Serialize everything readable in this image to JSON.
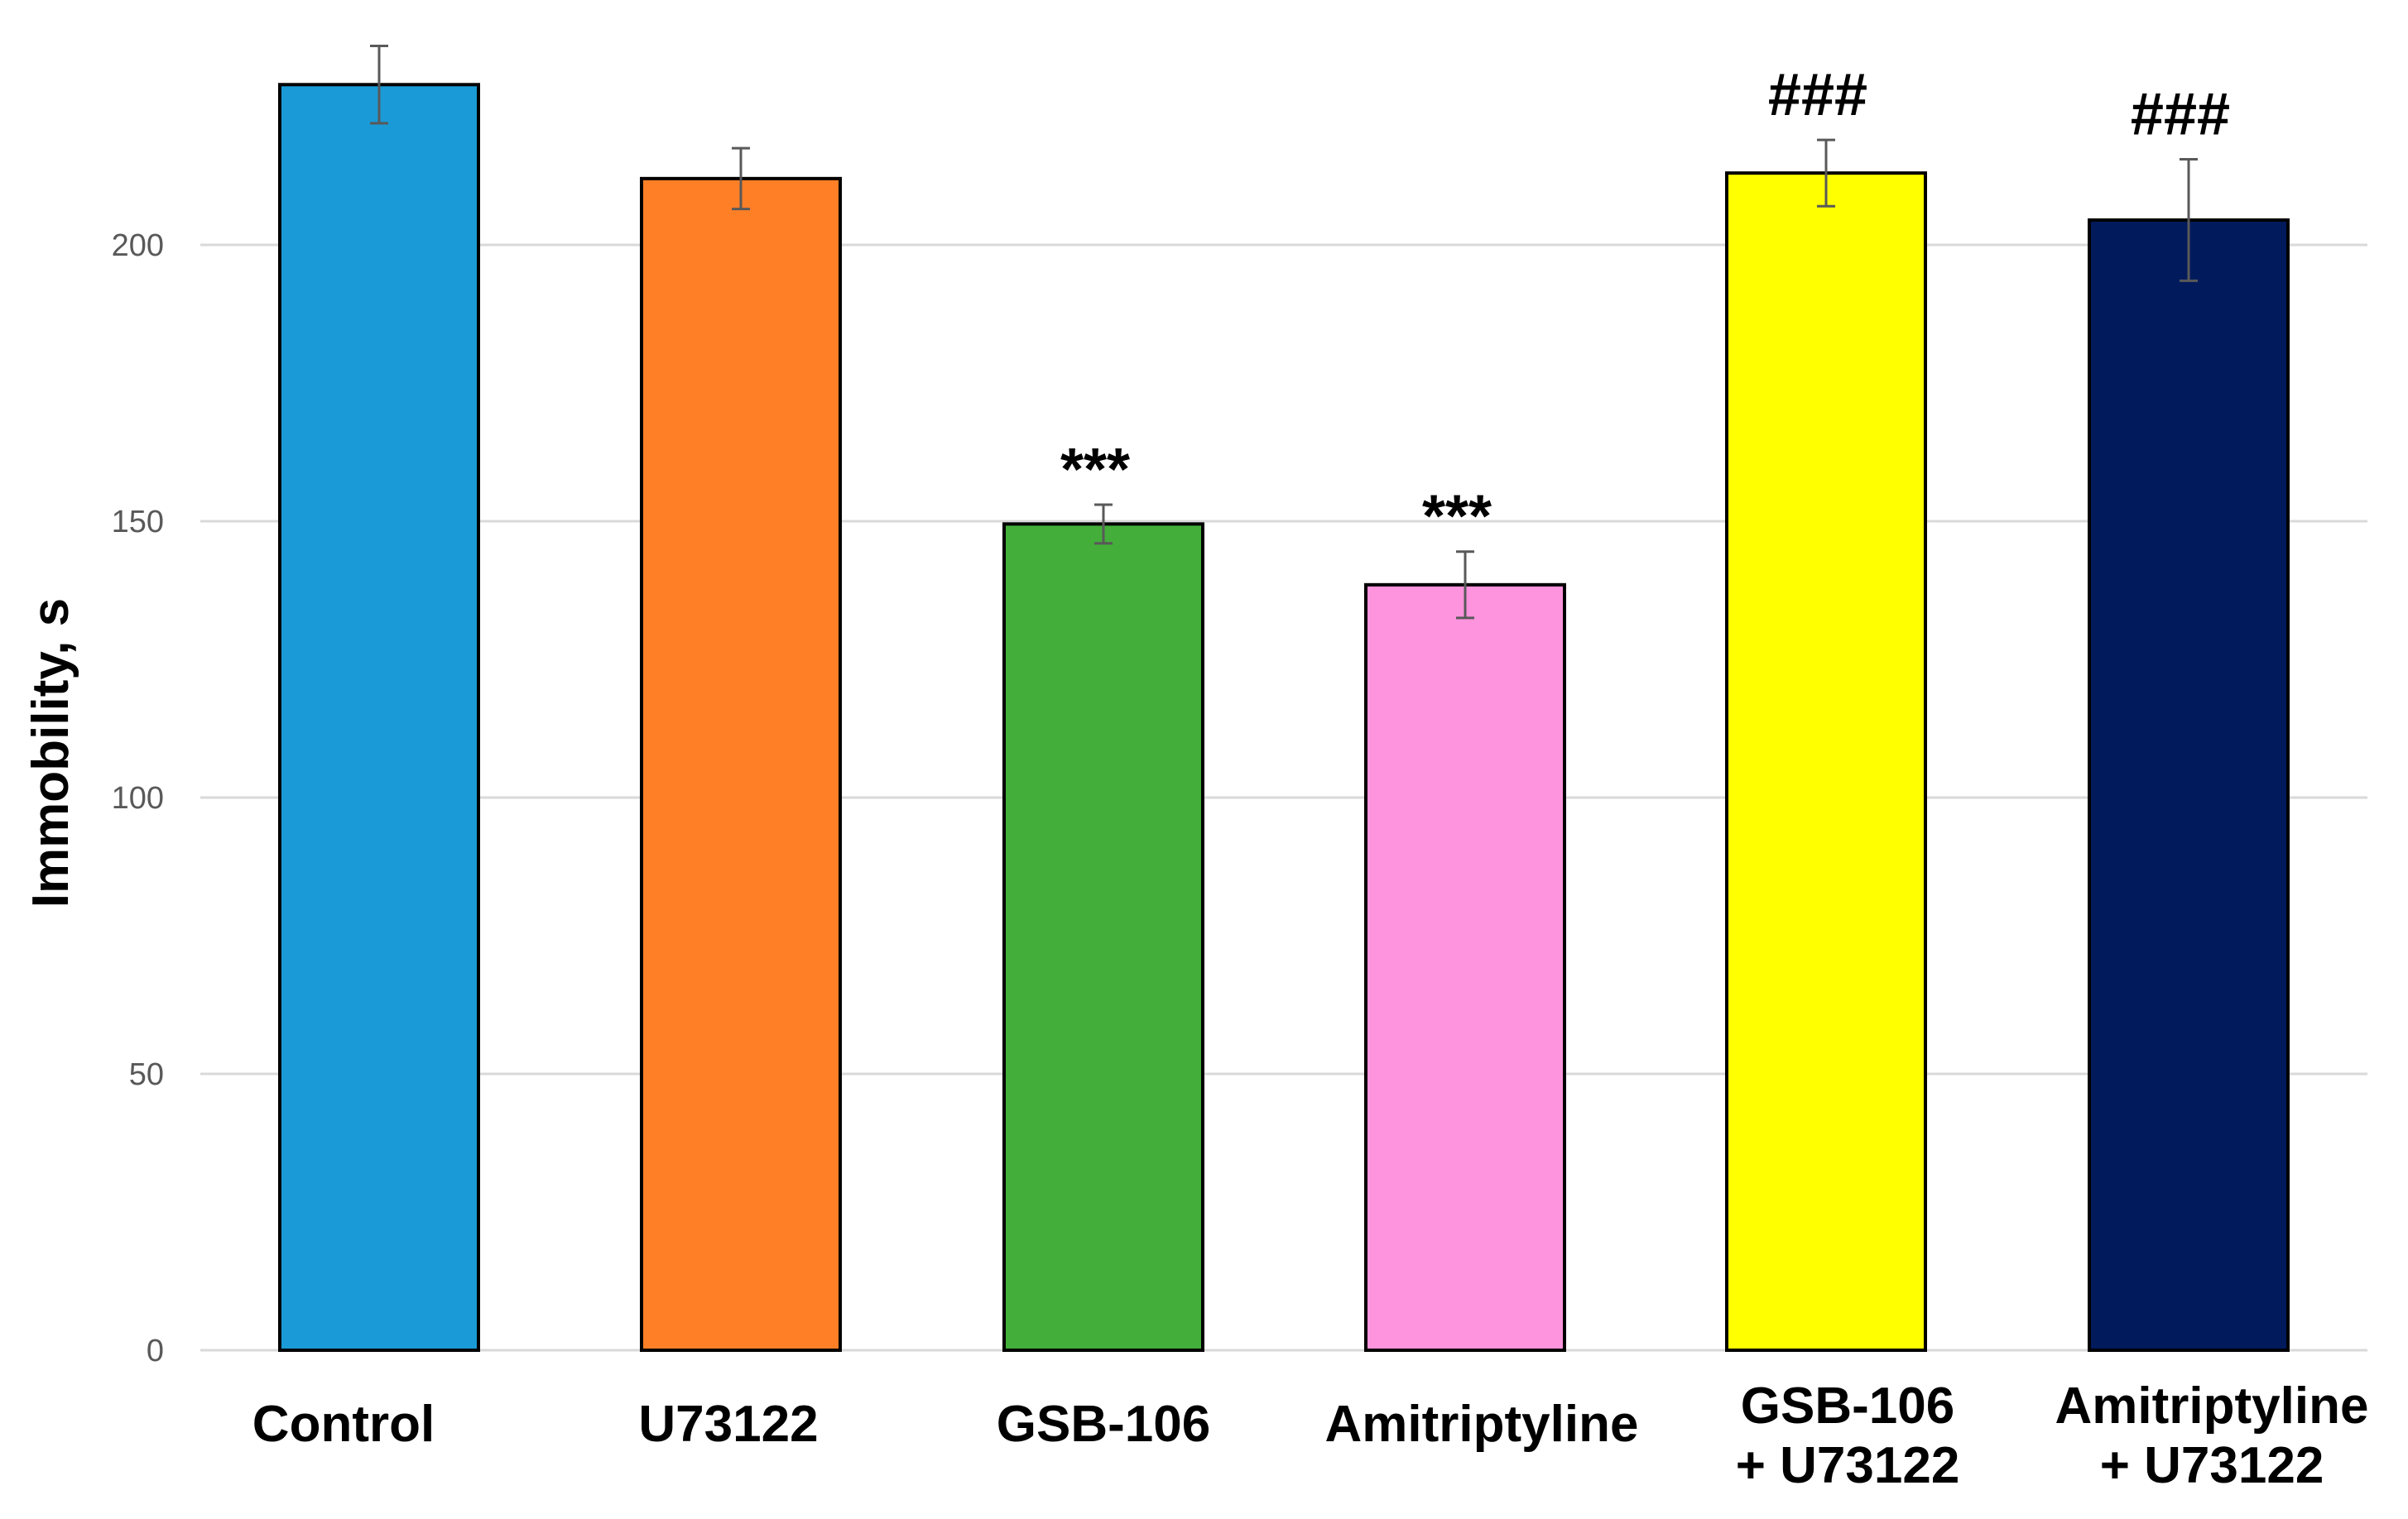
{
  "chart_data": {
    "type": "bar",
    "title": "",
    "xlabel": "",
    "ylabel": "Immobility, s",
    "ylim": [
      0,
      240
    ],
    "yticks": [
      0,
      50,
      100,
      150,
      200
    ],
    "grid": true,
    "categories": [
      [
        "Control"
      ],
      [
        "U73122"
      ],
      [
        "GSB-106"
      ],
      [
        "Amitriptyline"
      ],
      [
        "GSB-106",
        "+ U73122"
      ],
      [
        "Amitriptyline",
        "+ U73122"
      ]
    ],
    "values": [
      229,
      212,
      149.5,
      138.5,
      213,
      204.5
    ],
    "errors": [
      7,
      5.5,
      3.5,
      6,
      6,
      11
    ],
    "colors": [
      "#1a9bd7",
      "#ff7f27",
      "#44ae3a",
      "#ff94de",
      "#ffff00",
      "#001a5c"
    ],
    "annotations": [
      "",
      "",
      "***",
      "***",
      "###",
      "###"
    ]
  }
}
